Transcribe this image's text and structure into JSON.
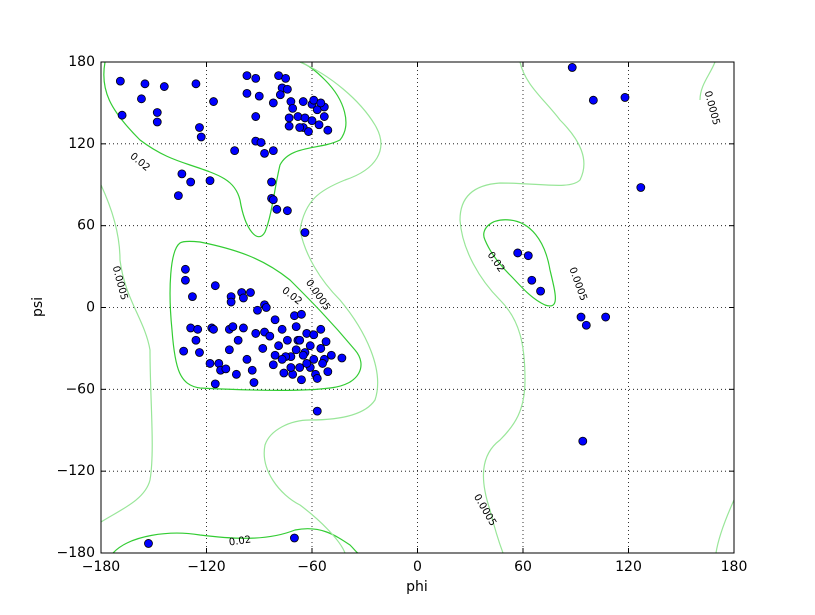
{
  "chart_data": {
    "type": "scatter",
    "xlabel": "phi",
    "ylabel": "psi",
    "xlim": [
      -180,
      180
    ],
    "ylim": [
      -180,
      180
    ],
    "xticks": [
      {
        "value": -180,
        "label": "−180"
      },
      {
        "value": -120,
        "label": "−120"
      },
      {
        "value": -60,
        "label": "−60"
      },
      0,
      60,
      120,
      180
    ],
    "yticks": [
      {
        "value": -180,
        "label": "−180"
      },
      {
        "value": -120,
        "label": "−120"
      },
      {
        "value": -60,
        "label": "−60"
      },
      0,
      60,
      120,
      180
    ],
    "grid": true,
    "contours": [
      {
        "level": 0.02,
        "color": "#33cc33"
      },
      {
        "level": 0.0005,
        "color": "#99e699"
      }
    ],
    "series": [
      {
        "color": "#0000ff",
        "x": [
          -169,
          -168,
          -155,
          -157,
          -144,
          -148,
          -148,
          -126,
          -116,
          -124,
          -123,
          -134,
          -129,
          -118,
          -136,
          -104,
          -97,
          -97,
          -92,
          -90,
          -82,
          -92,
          -92,
          -89,
          -87,
          -82,
          -83,
          -83,
          -82,
          -80,
          -74,
          -79,
          -75,
          -77,
          -74,
          -78,
          -72,
          -71,
          -73,
          -73,
          -65,
          -68,
          -64,
          -65,
          -60,
          -60,
          -62,
          -59,
          -57,
          -56,
          -53,
          -53,
          -51,
          -55,
          -67,
          88,
          100,
          118,
          127,
          57,
          63,
          65,
          70,
          93,
          96,
          107,
          94,
          -64,
          -57,
          -153,
          -70,
          -132,
          -132,
          -128,
          -115,
          -106,
          -106,
          -100,
          -99,
          -95,
          -129,
          -125,
          -133,
          -126,
          -124,
          -117,
          -116,
          -118,
          -113,
          -112,
          -115,
          -109,
          -107,
          -105,
          -99,
          -107,
          -102,
          -103,
          -97,
          -93,
          -94,
          -91,
          -92,
          -87,
          -86,
          -87,
          -84,
          -88,
          -82,
          -81,
          -81,
          -77,
          -79,
          -76,
          -70,
          -66,
          -69,
          -68,
          -72,
          -71,
          -66,
          -67,
          -63,
          -64,
          -61,
          -59,
          -58,
          -55,
          -55,
          -53,
          -51,
          -52,
          -49,
          -43,
          -67,
          -74,
          -75,
          -61,
          -57,
          -54,
          -63,
          -69,
          -59,
          -77,
          -72,
          -65
        ],
        "values": [
          166,
          141,
          164,
          153,
          162,
          143,
          136,
          164,
          151,
          132,
          125,
          98,
          92,
          93,
          82,
          115,
          170,
          157,
          168,
          155,
          150,
          140,
          122,
          121,
          113,
          115,
          92,
          80,
          79,
          72,
          71,
          170,
          168,
          161,
          160,
          156,
          151,
          146,
          139,
          133,
          151,
          140,
          139,
          132,
          149,
          137,
          129,
          152,
          145,
          134,
          147,
          140,
          130,
          150,
          132,
          176,
          152,
          154,
          88,
          40,
          38,
          20,
          12,
          -7,
          -13,
          -7,
          -98,
          55,
          -76,
          -173,
          -169,
          28,
          20,
          8,
          16,
          8,
          4,
          11,
          7,
          11,
          -15,
          -16,
          -32,
          -24,
          -33,
          -15,
          -16,
          -41,
          -41,
          -46,
          -56,
          -45,
          -16,
          -14,
          -15,
          -31,
          -24,
          -49,
          -38,
          -55,
          -46,
          -2,
          -19,
          2,
          0,
          -18,
          -21,
          -30,
          -42,
          -35,
          -9,
          -16,
          -28,
          -48,
          -6,
          -5,
          -14,
          -24,
          -36,
          -49,
          -53,
          -44,
          -19,
          -33,
          -28,
          -38,
          -49,
          -16,
          -30,
          -38,
          -47,
          -25,
          -35,
          -37,
          -24,
          -24,
          -36,
          -44,
          -52,
          -41,
          -41,
          -31,
          -20,
          -38,
          -44,
          -35
        ]
      }
    ]
  }
}
